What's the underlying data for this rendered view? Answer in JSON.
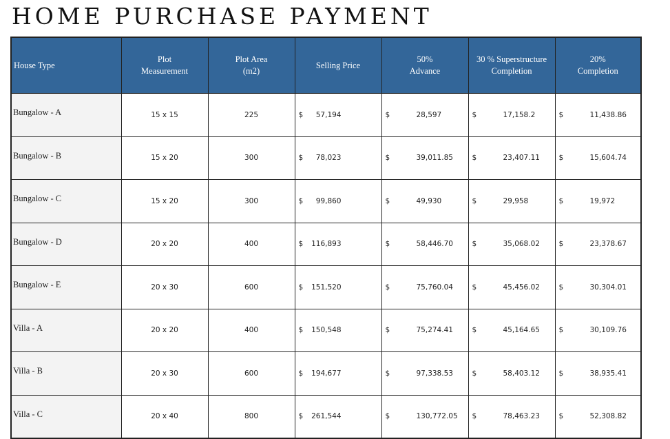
{
  "title": "HOME PURCHASE PAYMENT",
  "header_color": "#336699",
  "columns": [
    "House Type",
    "Plot\nMeasurement",
    "Plot Area\n(m2)",
    "Selling Price",
    "50%\nAdvance",
    "30 %  Superstructure\nCompletion",
    "20%\nCompletion"
  ],
  "currency_symbol": "$",
  "rows": [
    {
      "type": "Bungalow - A",
      "measurement": "15 x 15",
      "area": "225",
      "price": "57,194",
      "advance": "28,597",
      "superstructure": "17,158.2",
      "completion": "11,438.86"
    },
    {
      "type": "Bungalow - B",
      "measurement": "15 x 20",
      "area": "300",
      "price": "78,023",
      "advance": "39,011.85",
      "superstructure": "23,407.11",
      "completion": "15,604.74"
    },
    {
      "type": "Bungalow - C",
      "measurement": "15 x 20",
      "area": "300",
      "price": "99,860",
      "advance": "49,930",
      "superstructure": "29,958",
      "completion": "19,972"
    },
    {
      "type": "Bungalow - D",
      "measurement": "20 x 20",
      "area": "400",
      "price": "116,893",
      "advance": "58,446.70",
      "superstructure": "35,068.02",
      "completion": "23,378.67"
    },
    {
      "type": "Bungalow - E",
      "measurement": "20 x 30",
      "area": "600",
      "price": "151,520",
      "advance": "75,760.04",
      "superstructure": "45,456.02",
      "completion": "30,304.01"
    },
    {
      "type": "Villa - A",
      "measurement": "20 x 20",
      "area": "400",
      "price": "150,548",
      "advance": "75,274.41",
      "superstructure": "45,164.65",
      "completion": "30,109.76"
    },
    {
      "type": "Villa - B",
      "measurement": "20 x 30",
      "area": "600",
      "price": "194,677",
      "advance": "97,338.53",
      "superstructure": "58,403.12",
      "completion": "38,935.41"
    },
    {
      "type": "Villa - C",
      "measurement": "20 x 40",
      "area": "800",
      "price": "261,544",
      "advance": "130,772.05",
      "superstructure": "78,463.23",
      "completion": "52,308.82"
    }
  ]
}
